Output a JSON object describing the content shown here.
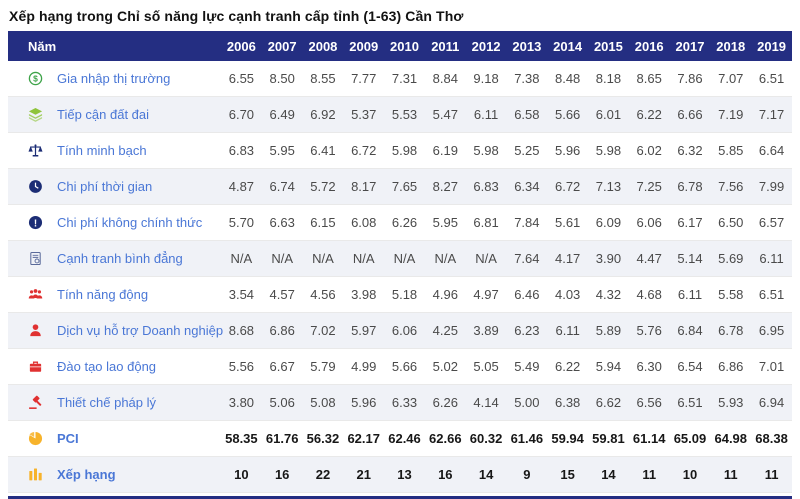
{
  "page_title": "Xếp hạng trong Chỉ số năng lực cạnh tranh cấp tỉnh (1-63) Cần Thơ",
  "colors": {
    "header_bg": "#242e82",
    "alt_row_bg": "#f0f2f7",
    "label_blue": "#4a77d6",
    "value_gray": "#4a4a4a",
    "icon_green": "#3da348",
    "icon_lime": "#8fc43c",
    "icon_navy": "#1c2d75",
    "icon_red": "#e03131",
    "icon_amber": "#f7b32b"
  },
  "table": {
    "year_column_header": "Năm",
    "years": [
      "2006",
      "2007",
      "2008",
      "2009",
      "2010",
      "2011",
      "2012",
      "2013",
      "2014",
      "2015",
      "2016",
      "2017",
      "2018",
      "2019"
    ],
    "rows": [
      {
        "label": "Gia nhập thị trường",
        "icon": "dollar-circle-icon",
        "bold": false,
        "values": [
          "6.55",
          "8.50",
          "8.55",
          "7.77",
          "7.31",
          "8.84",
          "9.18",
          "7.38",
          "8.48",
          "8.18",
          "8.65",
          "7.86",
          "7.07",
          "6.51"
        ]
      },
      {
        "label": "Tiếp cận đất đai",
        "icon": "land-layers-icon",
        "bold": false,
        "values": [
          "6.70",
          "6.49",
          "6.92",
          "5.37",
          "5.53",
          "5.47",
          "6.11",
          "6.58",
          "5.66",
          "6.01",
          "6.22",
          "6.66",
          "7.19",
          "7.17"
        ]
      },
      {
        "label": "Tính minh bạch",
        "icon": "scales-icon",
        "bold": false,
        "values": [
          "6.83",
          "5.95",
          "6.41",
          "6.72",
          "5.98",
          "6.19",
          "5.98",
          "5.25",
          "5.96",
          "5.98",
          "6.02",
          "6.32",
          "5.85",
          "6.64"
        ]
      },
      {
        "label": "Chi phí thời gian",
        "icon": "clock-icon",
        "bold": false,
        "values": [
          "4.87",
          "6.74",
          "5.72",
          "8.17",
          "7.65",
          "8.27",
          "6.83",
          "6.34",
          "6.72",
          "7.13",
          "7.25",
          "6.78",
          "7.56",
          "7.99"
        ]
      },
      {
        "label": "Chi phí không chính thức",
        "icon": "exclamation-circle-icon",
        "bold": false,
        "values": [
          "5.70",
          "6.63",
          "6.15",
          "6.08",
          "6.26",
          "5.95",
          "6.81",
          "7.84",
          "5.61",
          "6.09",
          "6.06",
          "6.17",
          "6.50",
          "6.57"
        ]
      },
      {
        "label": "Cạnh tranh bình đẳng",
        "icon": "fair-competition-icon",
        "bold": false,
        "values": [
          "N/A",
          "N/A",
          "N/A",
          "N/A",
          "N/A",
          "N/A",
          "N/A",
          "7.64",
          "4.17",
          "3.90",
          "4.47",
          "5.14",
          "5.69",
          "6.11"
        ]
      },
      {
        "label": "Tính năng động",
        "icon": "people-group-icon",
        "bold": false,
        "values": [
          "3.54",
          "4.57",
          "4.56",
          "3.98",
          "5.18",
          "4.96",
          "4.97",
          "6.46",
          "4.03",
          "4.32",
          "4.68",
          "6.11",
          "5.58",
          "6.51"
        ]
      },
      {
        "label": "Dịch vụ hỗ trợ Doanh nghiệp",
        "icon": "person-icon",
        "bold": false,
        "values": [
          "8.68",
          "6.86",
          "7.02",
          "5.97",
          "6.06",
          "4.25",
          "3.89",
          "6.23",
          "6.11",
          "5.89",
          "5.76",
          "6.84",
          "6.78",
          "6.95"
        ]
      },
      {
        "label": "Đào tạo lao động",
        "icon": "labor-training-icon",
        "bold": false,
        "values": [
          "5.56",
          "6.67",
          "5.79",
          "4.99",
          "5.66",
          "5.02",
          "5.05",
          "5.49",
          "6.22",
          "5.94",
          "6.30",
          "6.54",
          "6.86",
          "7.01"
        ]
      },
      {
        "label": "Thiết chế pháp lý",
        "icon": "gavel-icon",
        "bold": false,
        "values": [
          "3.80",
          "5.06",
          "5.08",
          "5.96",
          "6.33",
          "6.26",
          "4.14",
          "5.00",
          "6.38",
          "6.62",
          "6.56",
          "6.51",
          "5.93",
          "6.94"
        ]
      },
      {
        "label": "PCI",
        "icon": "pie-chart-icon",
        "bold": true,
        "values": [
          "58.35",
          "61.76",
          "56.32",
          "62.17",
          "62.46",
          "62.66",
          "60.32",
          "61.46",
          "59.94",
          "59.81",
          "61.14",
          "65.09",
          "64.98",
          "68.38"
        ]
      },
      {
        "label": "Xếp hạng",
        "icon": "bar-chart-icon",
        "bold": true,
        "values": [
          "10",
          "16",
          "22",
          "21",
          "13",
          "16",
          "14",
          "9",
          "15",
          "14",
          "11",
          "10",
          "11",
          "11"
        ]
      }
    ]
  }
}
